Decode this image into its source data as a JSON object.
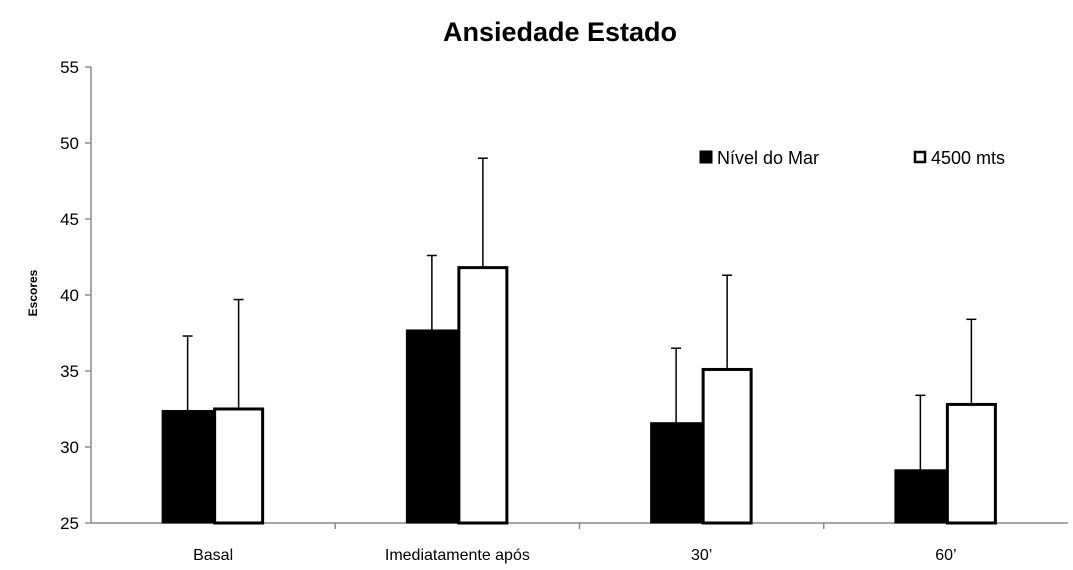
{
  "chart_data": {
    "type": "bar",
    "title": "Ansiedade Estado",
    "xlabel": "",
    "ylabel": "Escores",
    "ylim": [
      25,
      55
    ],
    "yticks": [
      25,
      30,
      35,
      40,
      45,
      50,
      55
    ],
    "categories": [
      "Basal",
      "Imediatamente após",
      "30’",
      "60’"
    ],
    "series": [
      {
        "name": "Nível do Mar",
        "color": "#000000",
        "values": [
          32.4,
          37.7,
          31.6,
          28.5
        ],
        "error": [
          4.9,
          4.9,
          4.9,
          4.9
        ]
      },
      {
        "name": "4500 mts",
        "color": "#ffffff",
        "values": [
          32.6,
          41.9,
          35.2,
          32.9
        ],
        "error": [
          7.1,
          7.1,
          6.1,
          5.5
        ]
      }
    ],
    "legend": "top-right",
    "grid": false
  }
}
